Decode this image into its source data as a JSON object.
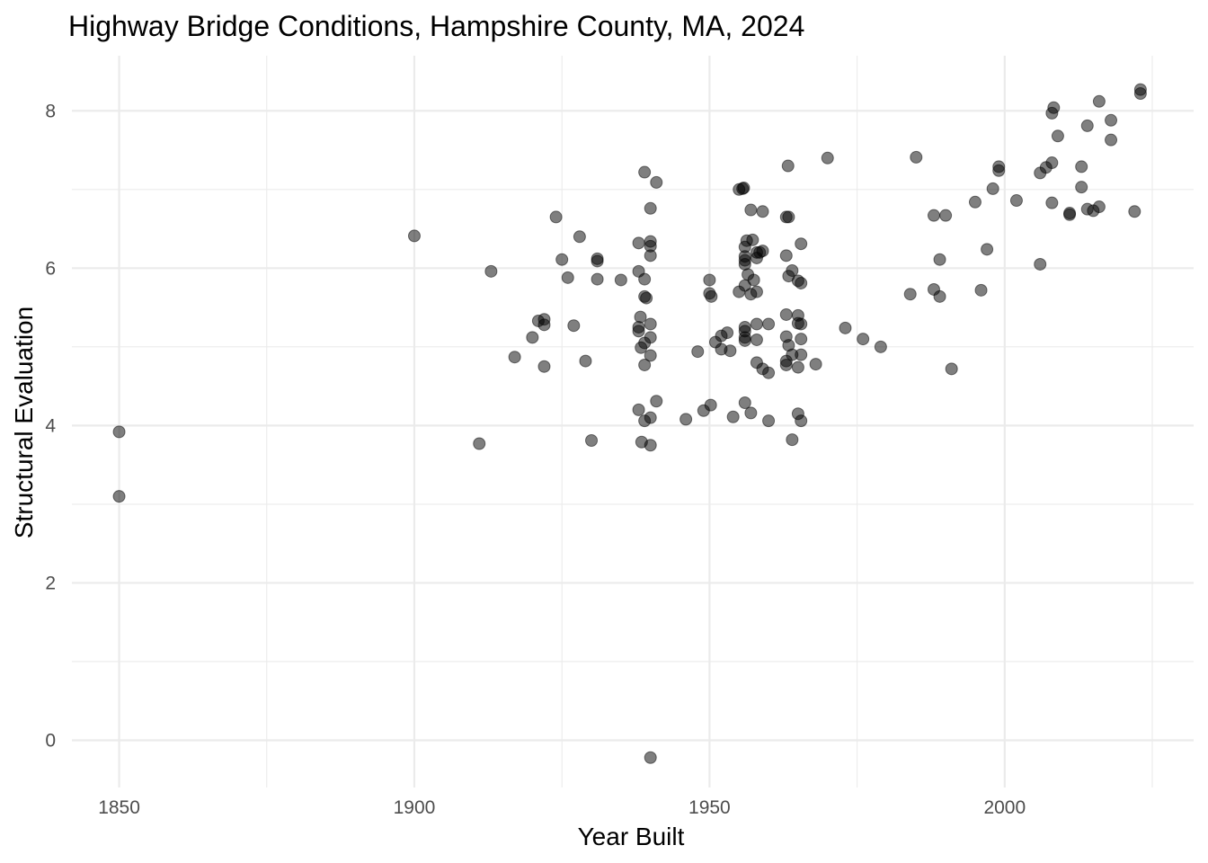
{
  "chart_data": {
    "type": "scatter",
    "title": "Highway Bridge Conditions, Hampshire County, MA, 2024",
    "xlabel": "Year Built",
    "ylabel": "Structural Evaluation",
    "xlim": [
      1842,
      2032
    ],
    "ylim": [
      -0.6,
      8.7
    ],
    "x_ticks": [
      1850,
      1900,
      1950,
      2000
    ],
    "x_tick_labels": [
      "1850",
      "1900",
      "1950",
      "2000"
    ],
    "y_ticks": [
      0,
      2,
      4,
      6,
      8
    ],
    "y_tick_labels": [
      "0",
      "2",
      "4",
      "6",
      "8"
    ],
    "x_minor_ticks": [
      1875,
      1925,
      1975,
      2025
    ],
    "y_minor_ticks": [
      1,
      3,
      5,
      7
    ],
    "grid": true,
    "legend": "none",
    "point_color": "#000000",
    "point_alpha": 0.5,
    "points": [
      {
        "x": 1850,
        "y": 3.92
      },
      {
        "x": 1850,
        "y": 3.1
      },
      {
        "x": 1900,
        "y": 6.41
      },
      {
        "x": 1911,
        "y": 3.77
      },
      {
        "x": 1913,
        "y": 5.96
      },
      {
        "x": 1917,
        "y": 4.87
      },
      {
        "x": 1920,
        "y": 5.12
      },
      {
        "x": 1921,
        "y": 5.33
      },
      {
        "x": 1922,
        "y": 5.35
      },
      {
        "x": 1922,
        "y": 5.28
      },
      {
        "x": 1922,
        "y": 4.75
      },
      {
        "x": 1924,
        "y": 6.65
      },
      {
        "x": 1925,
        "y": 6.11
      },
      {
        "x": 1926,
        "y": 5.88
      },
      {
        "x": 1927,
        "y": 5.27
      },
      {
        "x": 1928,
        "y": 6.4
      },
      {
        "x": 1929,
        "y": 4.82
      },
      {
        "x": 1930,
        "y": 3.81
      },
      {
        "x": 1931,
        "y": 5.86
      },
      {
        "x": 1931,
        "y": 6.12
      },
      {
        "x": 1931,
        "y": 6.09
      },
      {
        "x": 1935,
        "y": 5.85
      },
      {
        "x": 1938,
        "y": 6.32
      },
      {
        "x": 1938,
        "y": 5.96
      },
      {
        "x": 1938,
        "y": 5.25
      },
      {
        "x": 1938,
        "y": 5.2
      },
      {
        "x": 1938,
        "y": 4.2
      },
      {
        "x": 1938.3,
        "y": 5.38
      },
      {
        "x": 1938.4,
        "y": 4.99
      },
      {
        "x": 1938.5,
        "y": 3.79
      },
      {
        "x": 1939,
        "y": 7.22
      },
      {
        "x": 1939,
        "y": 5.86
      },
      {
        "x": 1939,
        "y": 5.64
      },
      {
        "x": 1939,
        "y": 5.05
      },
      {
        "x": 1939,
        "y": 4.77
      },
      {
        "x": 1939,
        "y": 4.06
      },
      {
        "x": 1939.3,
        "y": 5.62
      },
      {
        "x": 1940,
        "y": 6.76
      },
      {
        "x": 1940,
        "y": 6.34
      },
      {
        "x": 1940,
        "y": 6.28
      },
      {
        "x": 1940,
        "y": 6.16
      },
      {
        "x": 1940,
        "y": 5.29
      },
      {
        "x": 1940,
        "y": 5.12
      },
      {
        "x": 1940,
        "y": 4.89
      },
      {
        "x": 1940,
        "y": 4.1
      },
      {
        "x": 1940,
        "y": 3.75
      },
      {
        "x": 1940,
        "y": -0.22
      },
      {
        "x": 1941,
        "y": 7.09
      },
      {
        "x": 1941,
        "y": 4.31
      },
      {
        "x": 1946,
        "y": 4.08
      },
      {
        "x": 1948,
        "y": 4.94
      },
      {
        "x": 1949,
        "y": 4.19
      },
      {
        "x": 1950,
        "y": 5.85
      },
      {
        "x": 1950,
        "y": 5.68
      },
      {
        "x": 1950.3,
        "y": 5.64
      },
      {
        "x": 1950.2,
        "y": 4.26
      },
      {
        "x": 1951,
        "y": 5.06
      },
      {
        "x": 1952,
        "y": 5.14
      },
      {
        "x": 1952,
        "y": 4.97
      },
      {
        "x": 1953,
        "y": 5.18
      },
      {
        "x": 1953.5,
        "y": 4.95
      },
      {
        "x": 1954,
        "y": 4.11
      },
      {
        "x": 1955,
        "y": 7.0
      },
      {
        "x": 1955,
        "y": 5.7
      },
      {
        "x": 1955.6,
        "y": 7.01
      },
      {
        "x": 1955.8,
        "y": 7.02
      },
      {
        "x": 1956,
        "y": 6.27
      },
      {
        "x": 1956,
        "y": 6.15
      },
      {
        "x": 1956,
        "y": 6.1
      },
      {
        "x": 1956,
        "y": 6.05
      },
      {
        "x": 1956,
        "y": 5.78
      },
      {
        "x": 1956,
        "y": 5.25
      },
      {
        "x": 1956,
        "y": 5.2
      },
      {
        "x": 1956,
        "y": 5.12
      },
      {
        "x": 1956,
        "y": 5.08
      },
      {
        "x": 1956,
        "y": 4.29
      },
      {
        "x": 1956.3,
        "y": 6.35
      },
      {
        "x": 1956.5,
        "y": 5.92
      },
      {
        "x": 1957,
        "y": 6.74
      },
      {
        "x": 1957,
        "y": 5.67
      },
      {
        "x": 1957,
        "y": 4.16
      },
      {
        "x": 1957.3,
        "y": 6.36
      },
      {
        "x": 1957.5,
        "y": 5.85
      },
      {
        "x": 1958,
        "y": 6.2
      },
      {
        "x": 1958,
        "y": 6.13
      },
      {
        "x": 1958,
        "y": 5.7
      },
      {
        "x": 1958,
        "y": 5.29
      },
      {
        "x": 1958,
        "y": 5.09
      },
      {
        "x": 1958,
        "y": 4.8
      },
      {
        "x": 1958.5,
        "y": 6.2
      },
      {
        "x": 1959,
        "y": 6.72
      },
      {
        "x": 1959,
        "y": 6.22
      },
      {
        "x": 1959,
        "y": 4.72
      },
      {
        "x": 1960,
        "y": 5.29
      },
      {
        "x": 1960,
        "y": 4.67
      },
      {
        "x": 1960,
        "y": 4.06
      },
      {
        "x": 1963,
        "y": 6.65
      },
      {
        "x": 1963,
        "y": 6.16
      },
      {
        "x": 1963,
        "y": 5.41
      },
      {
        "x": 1963,
        "y": 5.13
      },
      {
        "x": 1963,
        "y": 4.82
      },
      {
        "x": 1963,
        "y": 4.77
      },
      {
        "x": 1963.4,
        "y": 6.65
      },
      {
        "x": 1963.4,
        "y": 5.9
      },
      {
        "x": 1963.4,
        "y": 5.02
      },
      {
        "x": 1963.3,
        "y": 7.3
      },
      {
        "x": 1964,
        "y": 5.97
      },
      {
        "x": 1964,
        "y": 4.9
      },
      {
        "x": 1964,
        "y": 3.82
      },
      {
        "x": 1965,
        "y": 5.84
      },
      {
        "x": 1965,
        "y": 5.4
      },
      {
        "x": 1965,
        "y": 5.3
      },
      {
        "x": 1965,
        "y": 4.74
      },
      {
        "x": 1965,
        "y": 4.15
      },
      {
        "x": 1965.5,
        "y": 6.31
      },
      {
        "x": 1965.5,
        "y": 5.81
      },
      {
        "x": 1965.5,
        "y": 5.29
      },
      {
        "x": 1965.5,
        "y": 5.1
      },
      {
        "x": 1965.5,
        "y": 4.9
      },
      {
        "x": 1965.5,
        "y": 4.06
      },
      {
        "x": 1968,
        "y": 4.78
      },
      {
        "x": 1970,
        "y": 7.4
      },
      {
        "x": 1973,
        "y": 5.24
      },
      {
        "x": 1976,
        "y": 5.1
      },
      {
        "x": 1979,
        "y": 5.0
      },
      {
        "x": 1984,
        "y": 5.67
      },
      {
        "x": 1985,
        "y": 7.41
      },
      {
        "x": 1988,
        "y": 6.67
      },
      {
        "x": 1988,
        "y": 5.73
      },
      {
        "x": 1989,
        "y": 6.11
      },
      {
        "x": 1989,
        "y": 5.64
      },
      {
        "x": 1990,
        "y": 6.67
      },
      {
        "x": 1991,
        "y": 4.72
      },
      {
        "x": 1995,
        "y": 6.84
      },
      {
        "x": 1996,
        "y": 5.72
      },
      {
        "x": 1997,
        "y": 6.24
      },
      {
        "x": 1998,
        "y": 7.01
      },
      {
        "x": 1999,
        "y": 7.29
      },
      {
        "x": 1999,
        "y": 7.24
      },
      {
        "x": 2002,
        "y": 6.86
      },
      {
        "x": 2006,
        "y": 7.21
      },
      {
        "x": 2006,
        "y": 6.05
      },
      {
        "x": 2007,
        "y": 7.28
      },
      {
        "x": 2008,
        "y": 7.34
      },
      {
        "x": 2008,
        "y": 7.97
      },
      {
        "x": 2008,
        "y": 6.83
      },
      {
        "x": 2008.3,
        "y": 8.04
      },
      {
        "x": 2009,
        "y": 7.68
      },
      {
        "x": 2011,
        "y": 6.7
      },
      {
        "x": 2011,
        "y": 6.68
      },
      {
        "x": 2013,
        "y": 7.29
      },
      {
        "x": 2013,
        "y": 7.03
      },
      {
        "x": 2014,
        "y": 7.81
      },
      {
        "x": 2014,
        "y": 6.75
      },
      {
        "x": 2015,
        "y": 6.73
      },
      {
        "x": 2016,
        "y": 8.12
      },
      {
        "x": 2016,
        "y": 6.78
      },
      {
        "x": 2018,
        "y": 7.88
      },
      {
        "x": 2018,
        "y": 7.63
      },
      {
        "x": 2022,
        "y": 6.72
      },
      {
        "x": 2023,
        "y": 8.27
      },
      {
        "x": 2023,
        "y": 8.22
      }
    ]
  }
}
